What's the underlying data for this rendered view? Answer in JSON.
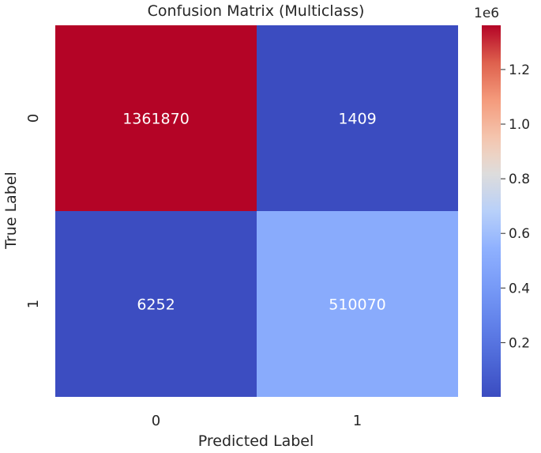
{
  "chart_data": {
    "type": "heatmap",
    "title": "Confusion Matrix (Multiclass)",
    "xlabel": "Predicted Label",
    "ylabel": "True Label",
    "x_categories": [
      "0",
      "1"
    ],
    "y_categories": [
      "0",
      "1"
    ],
    "values": [
      [
        1361870,
        1409
      ],
      [
        6252,
        510070
      ]
    ],
    "colormap": "coolwarm",
    "color_min": 1409,
    "color_max": 1361870,
    "colorbar": {
      "multiplier_label": "1e6",
      "ticks": [
        0.2,
        0.4,
        0.6,
        0.8,
        1.0,
        1.2
      ],
      "tick_labels": [
        "0.2",
        "0.4",
        "0.6",
        "0.8",
        "1.0",
        "1.2"
      ],
      "scale": 1000000
    },
    "annotation_colors": {
      "on_dark": "#ffffff",
      "on_light": "#262626"
    },
    "grid": false
  }
}
